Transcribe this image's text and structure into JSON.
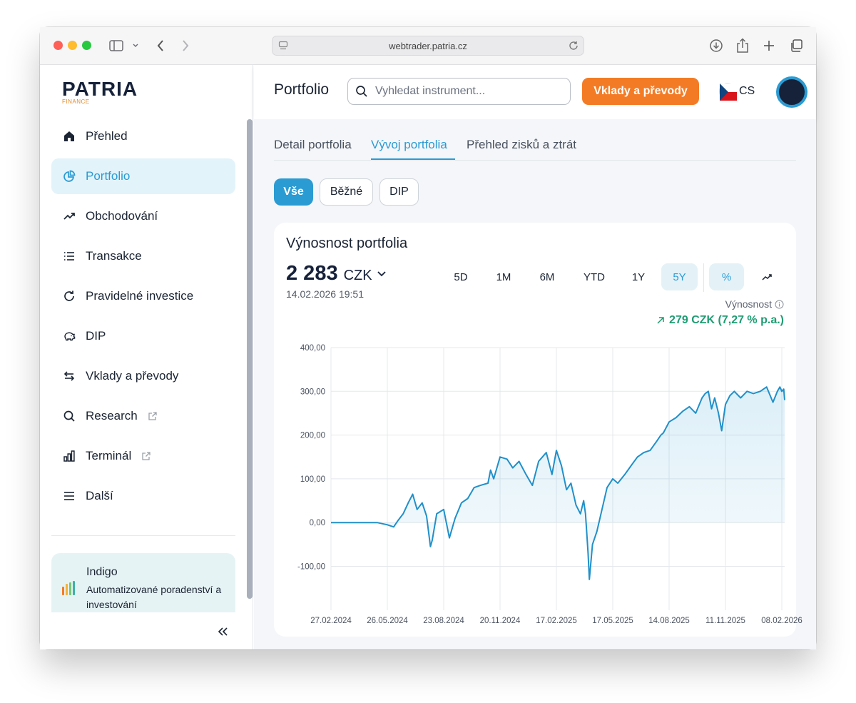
{
  "browser": {
    "url": "webtrader.patria.cz"
  },
  "logo": {
    "word": "PATRIA",
    "sub": "FINANCE"
  },
  "sidebar": {
    "items": [
      {
        "label": "Přehled",
        "icon": "home-icon"
      },
      {
        "label": "Portfolio",
        "icon": "pie-chart-icon",
        "active": true
      },
      {
        "label": "Obchodování",
        "icon": "trending-up-icon"
      },
      {
        "label": "Transakce",
        "icon": "list-icon"
      },
      {
        "label": "Pravidelné investice",
        "icon": "refresh-icon"
      },
      {
        "label": "DIP",
        "icon": "piggy-bank-icon"
      },
      {
        "label": "Vklady a převody",
        "icon": "transfer-arrows-icon"
      },
      {
        "label": "Research",
        "icon": "search-icon",
        "external": true
      },
      {
        "label": "Terminál",
        "icon": "bar-chart-icon",
        "external": true
      },
      {
        "label": "Další",
        "icon": "menu-icon"
      }
    ],
    "promo": {
      "title": "Indigo",
      "text": "Automatizované poradenství a investování"
    }
  },
  "header": {
    "title": "Portfolio",
    "search_placeholder": "Vyhledat instrument...",
    "deposit_label": "Vklady a převody",
    "language": "CS"
  },
  "tabs": [
    {
      "label": "Detail portfolia"
    },
    {
      "label": "Vývoj portfolia",
      "active": true
    },
    {
      "label": "Přehled zisků a ztrát"
    }
  ],
  "filters": [
    {
      "label": "Vše",
      "active": true
    },
    {
      "label": "Běžné"
    },
    {
      "label": "DIP"
    }
  ],
  "card": {
    "title": "Výnosnost portfolia",
    "value": "2 283",
    "currency": "CZK",
    "timestamp": "14.02.2026 19:51",
    "periods": [
      "5D",
      "1M",
      "6M",
      "YTD",
      "1Y",
      "5Y"
    ],
    "selected_period": "5Y",
    "mode_percent": "%",
    "return_label": "Výnosnost",
    "return_value": "279 CZK (7,27 % p.a.)"
  },
  "colors": {
    "accent": "#2b9bd3",
    "brand_orange": "#f47b25",
    "positive": "#1f9c73",
    "navy": "#16213a"
  },
  "chart_data": {
    "type": "area",
    "xlabel": "",
    "ylabel": "",
    "ylim": [
      -200,
      400
    ],
    "yticks": [
      "400,00",
      "300,00",
      "200,00",
      "100,00",
      "0,00",
      "-100,00"
    ],
    "ytick_values": [
      400,
      300,
      200,
      100,
      0,
      -100
    ],
    "xticks": [
      "27.02.2024",
      "26.05.2024",
      "23.08.2024",
      "20.11.2024",
      "17.02.2025",
      "17.05.2025",
      "14.08.2025",
      "11.11.2025",
      "08.02.2026"
    ],
    "grid": true,
    "series": [
      {
        "x": [
          "27.02.2024",
          "10.03.2024",
          "25.03.2024",
          "10.04.2024",
          "25.04.2024",
          "10.05.2024",
          "26.05.2024",
          "05.06.2024",
          "12.06.2024",
          "20.06.2024",
          "28.06.2024",
          "05.07.2024",
          "12.07.2024",
          "20.07.2024",
          "27.07.2024",
          "02.08.2024",
          "05.08.2024",
          "12.08.2024",
          "23.08.2024",
          "01.09.2024",
          "10.09.2024",
          "20.09.2024",
          "30.09.2024",
          "10.10.2024",
          "20.10.2024",
          "01.11.2024",
          "05.11.2024",
          "10.11.2024",
          "20.11.2024",
          "01.12.2024",
          "10.12.2024",
          "20.12.2024",
          "31.12.2024",
          "10.01.2025",
          "20.01.2025",
          "01.02.2025",
          "10.02.2025",
          "17.02.2025",
          "25.02.2025",
          "05.03.2025",
          "12.03.2025",
          "20.03.2025",
          "27.03.2025",
          "01.04.2025",
          "04.04.2025",
          "08.04.2025",
          "10.04.2025",
          "15.04.2025",
          "22.04.2025",
          "30.04.2025",
          "08.05.2025",
          "17.05.2025",
          "25.05.2025",
          "05.06.2025",
          "15.06.2025",
          "25.06.2025",
          "05.07.2025",
          "15.07.2025",
          "25.07.2025",
          "01.08.2025",
          "05.08.2025",
          "14.08.2025",
          "25.08.2025",
          "05.09.2025",
          "15.09.2025",
          "25.09.2025",
          "05.10.2025",
          "10.10.2025",
          "15.10.2025",
          "20.10.2025",
          "25.10.2025",
          "31.10.2025",
          "05.11.2025",
          "11.11.2025",
          "18.11.2025",
          "25.11.2025",
          "05.12.2025",
          "15.12.2025",
          "25.12.2025",
          "05.01.2026",
          "15.01.2026",
          "25.01.2026",
          "01.02.2026",
          "05.02.2026",
          "08.02.2026",
          "11.02.2026",
          "14.02.2026"
        ],
        "y": [
          0,
          0,
          0,
          0,
          0,
          0,
          -5,
          -10,
          5,
          20,
          45,
          65,
          30,
          45,
          15,
          -55,
          -40,
          20,
          30,
          -35,
          10,
          45,
          55,
          80,
          85,
          90,
          120,
          100,
          150,
          145,
          125,
          140,
          110,
          85,
          140,
          160,
          110,
          165,
          130,
          75,
          90,
          40,
          20,
          50,
          20,
          -70,
          -130,
          -50,
          -20,
          30,
          80,
          100,
          90,
          110,
          130,
          150,
          160,
          165,
          185,
          200,
          205,
          230,
          240,
          255,
          265,
          250,
          285,
          295,
          300,
          260,
          285,
          250,
          210,
          270,
          290,
          300,
          285,
          300,
          295,
          300,
          310,
          275,
          300,
          310,
          300,
          305,
          280
        ]
      }
    ]
  }
}
